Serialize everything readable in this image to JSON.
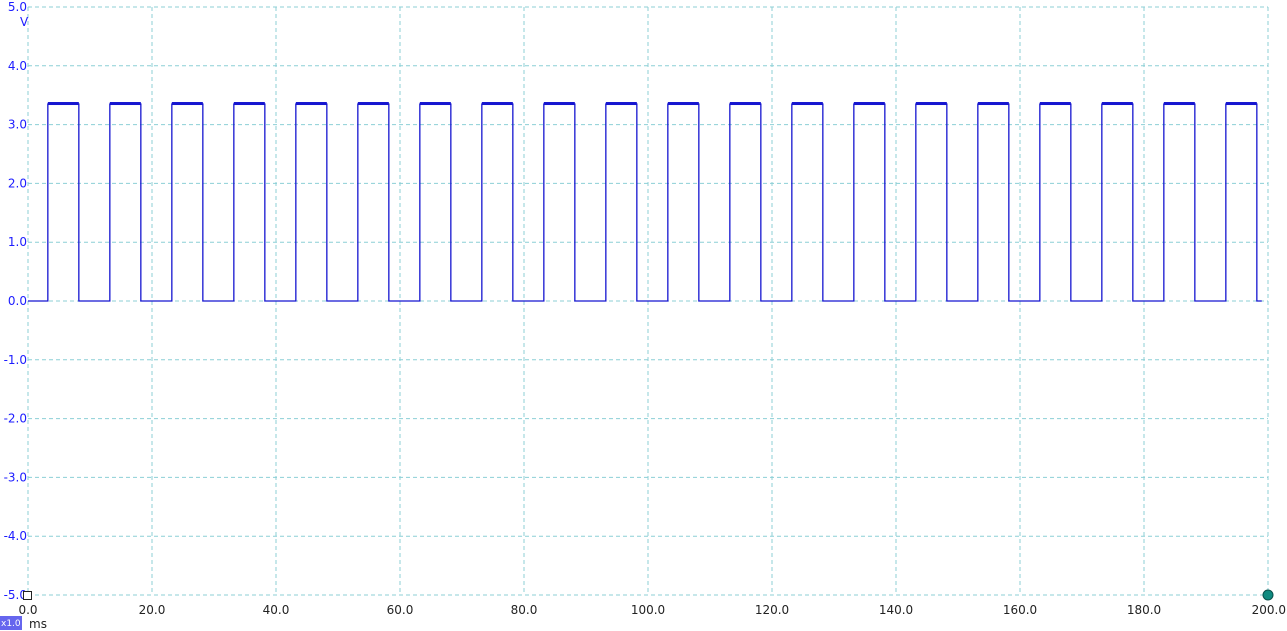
{
  "chart_data": {
    "type": "line",
    "y_unit": "V",
    "x_unit": "ms",
    "xlim": [
      0,
      200
    ],
    "ylim": [
      -5,
      5
    ],
    "grid": true,
    "x_ticks": [
      "0.0",
      "20.0",
      "40.0",
      "60.0",
      "80.0",
      "100.0",
      "120.0",
      "140.0",
      "160.0",
      "180.0",
      "200.0"
    ],
    "y_ticks": [
      "5.0",
      "4.0",
      "3.0",
      "2.0",
      "1.0",
      "0.0",
      "-1.0",
      "-2.0",
      "-3.0",
      "-4.0",
      "-5.0"
    ],
    "series": [
      {
        "color": "#1515d0",
        "waveform": "square",
        "high_v": 3.35,
        "low_v": 0.0,
        "period_ms": 10.0,
        "duty_fraction": 0.5,
        "rise_edges_ms": [
          3.2,
          13.2,
          23.2,
          33.2,
          43.2,
          53.2,
          63.2,
          73.2,
          83.2,
          93.2,
          103.2,
          113.2,
          123.2,
          133.2,
          143.2,
          153.2,
          163.2,
          173.2,
          183.2,
          193.2
        ],
        "x_start_ms": 0.0,
        "x_end_ms": 199.0
      }
    ]
  },
  "zoom_badge": "x1.0",
  "colors": {
    "grid": "#8ccfd6",
    "trace": "#1515d0",
    "tick_y": "#1c1cff",
    "marker_fill": "#0f8a80"
  }
}
